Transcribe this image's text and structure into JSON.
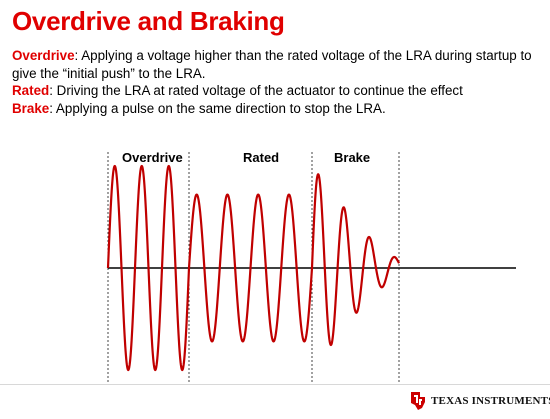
{
  "slide": {
    "title": "Overdrive and Braking",
    "definitions": [
      {
        "term": "Overdrive",
        "text": ": Applying a voltage higher than the rated voltage of the LRA during startup to give the “initial push” to the LRA."
      },
      {
        "term": "Rated",
        "text": ": Driving the LRA at rated voltage of the actuator to continue the effect"
      },
      {
        "term": "Brake",
        "text": ": Applying a pulse on the same direction to stop the LRA."
      }
    ]
  },
  "diagram": {
    "regions": [
      {
        "label": "Overdrive"
      },
      {
        "label": "Rated"
      },
      {
        "label": "Brake"
      }
    ],
    "waveform": {
      "color": "#c00000",
      "overdrive_amplitude": 1.0,
      "overdrive_cycles": 3,
      "rated_amplitude": 0.72,
      "rated_cycles": 4,
      "brake_amplitudes": [
        1.0,
        0.72,
        0.45,
        0.22,
        0.08
      ]
    }
  },
  "footer": {
    "brand": "Texas Instruments",
    "brand_display": "TEXAS INSTRUMENTS",
    "logo_icon": "ti-logo-icon"
  },
  "colors": {
    "accent": "#e00000",
    "wave": "#c00000"
  }
}
